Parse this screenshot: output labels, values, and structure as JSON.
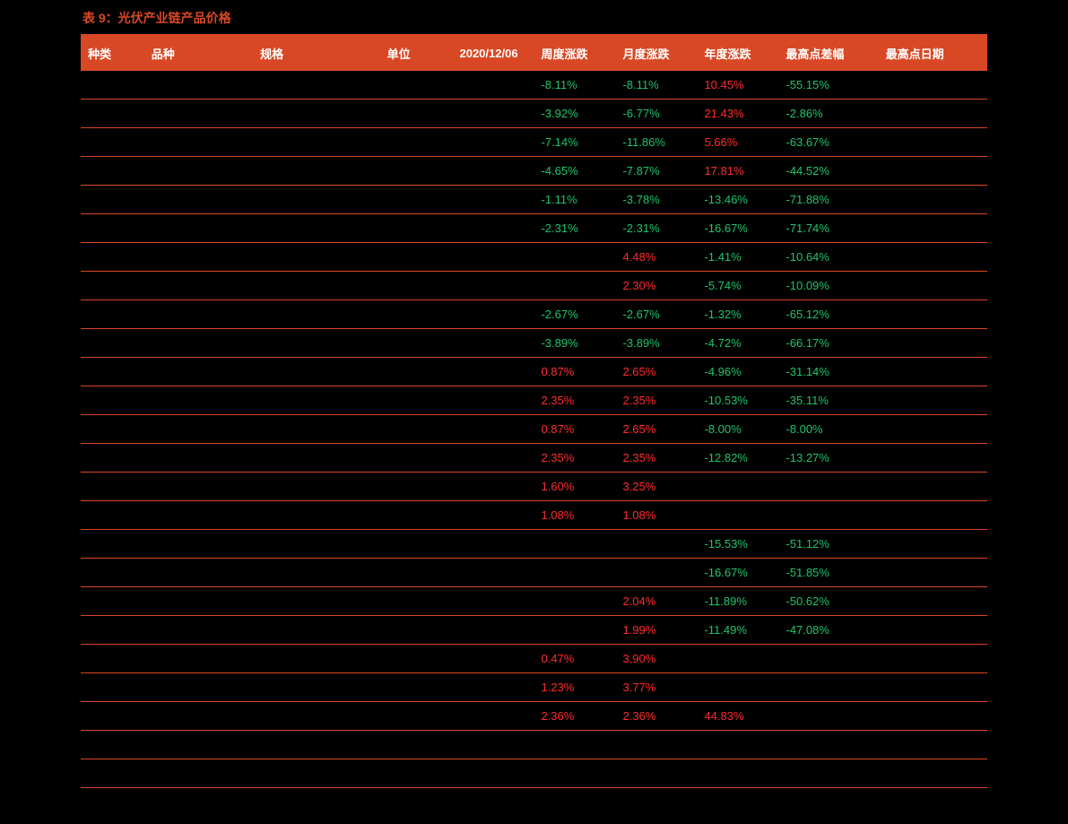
{
  "title": "表 9：光伏产业链产品价格",
  "columns": [
    {
      "key": "kind",
      "label": "种类",
      "cls": "col-kind"
    },
    {
      "key": "variety",
      "label": "品种",
      "cls": "col-variety"
    },
    {
      "key": "spec",
      "label": "规格",
      "cls": "col-spec"
    },
    {
      "key": "unit",
      "label": "单位",
      "cls": "col-unit"
    },
    {
      "key": "date",
      "label": "2020/12/06",
      "cls": "col-date"
    },
    {
      "key": "week",
      "label": "周度涨跌",
      "cls": "col-week"
    },
    {
      "key": "month",
      "label": "月度涨跌",
      "cls": "col-month"
    },
    {
      "key": "year",
      "label": "年度涨跌",
      "cls": "col-year"
    },
    {
      "key": "diff",
      "label": "最高点差幅",
      "cls": "col-diff"
    },
    {
      "key": "hdate",
      "label": "最高点日期",
      "cls": "col-hdate"
    }
  ],
  "rows": [
    {
      "week": "-8.11%",
      "month": "-8.11%",
      "year": "10.45%",
      "diff": "-55.15%"
    },
    {
      "week": "-3.92%",
      "month": "-6.77%",
      "year": "21.43%",
      "diff": "-2.86%"
    },
    {
      "week": "-7.14%",
      "month": "-11.86%",
      "year": "5.66%",
      "diff": "-63.67%"
    },
    {
      "week": "-4.65%",
      "month": "-7.87%",
      "year": "17.81%",
      "diff": "-44.52%"
    },
    {
      "week": "-1.11%",
      "month": "-3.78%",
      "year": "-13.46%",
      "diff": "-71.88%"
    },
    {
      "week": "-2.31%",
      "month": "-2.31%",
      "year": "-16.67%",
      "diff": "-71.74%"
    },
    {
      "month": "4.48%",
      "year": "-1.41%",
      "diff": "-10.64%"
    },
    {
      "month": "2.30%",
      "year": "-5.74%",
      "diff": "-10.09%"
    },
    {
      "week": "-2.67%",
      "month": "-2.67%",
      "year": "-1.32%",
      "diff": "-65.12%"
    },
    {
      "week": "-3.89%",
      "month": "-3.89%",
      "year": "-4.72%",
      "diff": "-66.17%"
    },
    {
      "week": "0.87%",
      "month": "2.65%",
      "year": "-4.96%",
      "diff": "-31.14%"
    },
    {
      "week": "2.35%",
      "month": "2.35%",
      "year": "-10.53%",
      "diff": "-35.11%"
    },
    {
      "week": "0.87%",
      "month": "2.65%",
      "year": "-8.00%",
      "diff": "-8.00%"
    },
    {
      "week": "2.35%",
      "month": "2.35%",
      "year": "-12.82%",
      "diff": "-13.27%"
    },
    {
      "week": "1.60%",
      "month": "3.25%"
    },
    {
      "week": "1.08%",
      "month": "1.08%"
    },
    {
      "year": "-15.53%",
      "diff": "-51.12%"
    },
    {
      "year": "-16.67%",
      "diff": "-51.85%"
    },
    {
      "month": "2.04%",
      "year": "-11.89%",
      "diff": "-50.62%"
    },
    {
      "month": "1.99%",
      "year": "-11.49%",
      "diff": "-47.08%"
    },
    {
      "week": "0.47%",
      "month": "3.90%"
    },
    {
      "week": "1.23%",
      "month": "3.77%"
    },
    {
      "week": "2.36%",
      "month": "2.36%",
      "year": "44.83%"
    },
    {},
    {}
  ],
  "colors": {
    "positive": "#ff2b2b",
    "negative": "#1ec46a",
    "accent": "#d94824",
    "bg": "#000000"
  }
}
